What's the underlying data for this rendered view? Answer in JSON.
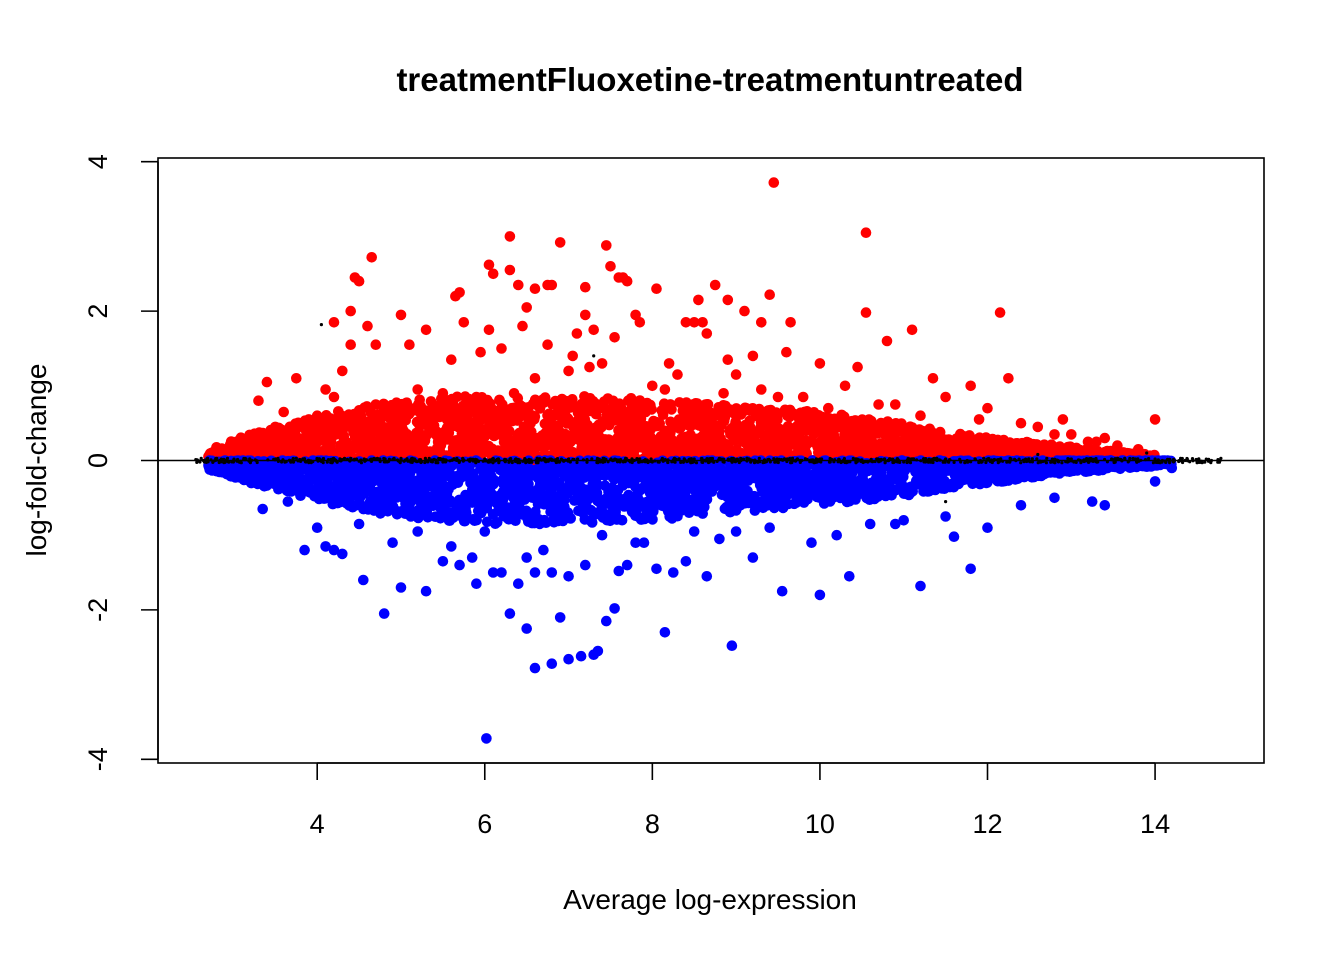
{
  "chart_data": {
    "type": "scatter",
    "title": "treatmentFluoxetine-treatmentuntreated",
    "xlabel": "Average log-expression",
    "ylabel": "log-fold-change",
    "xlim": [
      2.1,
      15.3
    ],
    "ylim": [
      -4.05,
      4.05
    ],
    "x_ticks": [
      4,
      6,
      8,
      10,
      12,
      14
    ],
    "y_ticks": [
      -4,
      -2,
      0,
      2,
      4
    ],
    "hline": 0,
    "grid": false,
    "legend": "none",
    "colors": {
      "up": "#ff0000",
      "down": "#0000ff",
      "ns": "#000000"
    },
    "series": [
      {
        "color": "#ff0000",
        "x": [
          9.45,
          10.55,
          6.3,
          6.9,
          7.45,
          4.65,
          6.05,
          6.3,
          7.5,
          7.6,
          4.45,
          4.5,
          6.1,
          6.4,
          6.6,
          6.75,
          6.8,
          7.2,
          7.7,
          7.65,
          8.05,
          8.75,
          8.55,
          8.9,
          9.1,
          9.4,
          10.55,
          12.15,
          4.4,
          5.0,
          5.65,
          5.7,
          6.5,
          7.8,
          7.2,
          8.6,
          9.3,
          9.65,
          10.8,
          11.1,
          4.2,
          4.4,
          4.6,
          4.7,
          5.1,
          5.3,
          5.75,
          6.05,
          6.45,
          7.1,
          7.3,
          7.55,
          7.85,
          8.4,
          8.5,
          8.65,
          3.4,
          3.75,
          4.1,
          4.3,
          5.6,
          5.95,
          6.2,
          6.75,
          7.05,
          7.25,
          8.2,
          8.9,
          9.0,
          9.2,
          9.6,
          10.0,
          10.45,
          11.35,
          11.8,
          12.25,
          12.9,
          13.2,
          13.55,
          14.0,
          2.8,
          3.0,
          3.2,
          3.3,
          3.6,
          3.9,
          4.2,
          4.7,
          5.2,
          5.5,
          5.9,
          6.6,
          7.0,
          7.4,
          8.0,
          8.3,
          9.3,
          9.8,
          10.3,
          10.9,
          11.5,
          12.0,
          12.6,
          13.0,
          13.4,
          13.8,
          3.5,
          4.0,
          4.9,
          5.4,
          6.35,
          6.95,
          7.6,
          8.15,
          8.85,
          9.5,
          10.1,
          10.7,
          11.2,
          11.9,
          12.4,
          12.8,
          13.3
        ],
        "y": [
          3.72,
          3.05,
          3.0,
          2.92,
          2.88,
          2.72,
          2.62,
          2.55,
          2.6,
          2.45,
          2.45,
          2.4,
          2.5,
          2.35,
          2.3,
          2.35,
          2.35,
          2.32,
          2.4,
          2.45,
          2.3,
          2.35,
          2.15,
          2.15,
          2.0,
          2.22,
          1.98,
          1.98,
          2.0,
          1.95,
          2.2,
          2.25,
          2.05,
          1.95,
          1.95,
          1.85,
          1.85,
          1.85,
          1.6,
          1.75,
          1.85,
          1.55,
          1.8,
          1.55,
          1.55,
          1.75,
          1.85,
          1.75,
          1.8,
          1.7,
          1.75,
          1.65,
          1.85,
          1.85,
          1.85,
          1.7,
          1.05,
          1.1,
          0.95,
          1.2,
          1.35,
          1.45,
          1.5,
          1.55,
          1.4,
          1.25,
          1.3,
          1.35,
          1.15,
          1.4,
          1.45,
          1.3,
          1.25,
          1.1,
          1.0,
          1.1,
          0.55,
          0.25,
          0.2,
          0.55,
          0.12,
          0.2,
          0.25,
          0.8,
          0.65,
          0.55,
          0.85,
          0.75,
          0.95,
          0.9,
          0.85,
          1.1,
          1.2,
          1.3,
          1.0,
          1.15,
          0.95,
          0.85,
          1.0,
          0.75,
          0.85,
          0.7,
          0.45,
          0.35,
          0.3,
          0.15,
          0.45,
          0.6,
          0.7,
          0.65,
          0.9,
          0.8,
          0.75,
          0.95,
          0.9,
          0.85,
          0.7,
          0.75,
          0.6,
          0.55,
          0.5,
          0.35,
          0.25
        ],
        "band": [
          [
            2.7,
            0.15
          ],
          [
            3.2,
            0.35
          ],
          [
            3.7,
            0.5
          ],
          [
            4.2,
            0.65
          ],
          [
            4.7,
            0.75
          ],
          [
            5.2,
            0.82
          ],
          [
            5.7,
            0.86
          ],
          [
            6.2,
            0.86
          ],
          [
            6.7,
            0.86
          ],
          [
            7.2,
            0.86
          ],
          [
            7.7,
            0.84
          ],
          [
            8.2,
            0.8
          ],
          [
            8.7,
            0.75
          ],
          [
            9.2,
            0.72
          ],
          [
            9.7,
            0.68
          ],
          [
            10.2,
            0.62
          ],
          [
            10.7,
            0.55
          ],
          [
            11.2,
            0.45
          ],
          [
            11.7,
            0.35
          ],
          [
            12.2,
            0.28
          ],
          [
            12.7,
            0.22
          ],
          [
            13.2,
            0.16
          ],
          [
            13.7,
            0.1
          ],
          [
            14.0,
            0.08
          ]
        ]
      },
      {
        "color": "#0000ff",
        "x": [
          6.02,
          6.6,
          6.8,
          7.0,
          7.15,
          7.3,
          7.35,
          8.95,
          4.8,
          6.3,
          6.5,
          6.9,
          7.45,
          7.55,
          8.15,
          10.0,
          5.3,
          5.0,
          5.9,
          6.1,
          6.4,
          6.6,
          7.0,
          7.6,
          7.7,
          8.25,
          8.65,
          9.55,
          4.55,
          5.7,
          6.2,
          6.8,
          7.2,
          8.05,
          8.4,
          9.2,
          10.35,
          11.8,
          3.85,
          4.1,
          4.3,
          5.5,
          5.85,
          6.5,
          7.9,
          8.8,
          9.9,
          11.2,
          11.6,
          12.0,
          13.25,
          13.4,
          3.35,
          3.65,
          4.0,
          4.5,
          5.2,
          6.0,
          7.4,
          8.5,
          9.4,
          10.6,
          11.0,
          11.5,
          12.4,
          12.8,
          14.0,
          14.2,
          4.2,
          4.9,
          5.6,
          6.7,
          7.8,
          9.0,
          10.2,
          10.9
        ],
        "y": [
          -3.72,
          -2.78,
          -2.72,
          -2.66,
          -2.62,
          -2.6,
          -2.55,
          -2.48,
          -2.05,
          -2.05,
          -2.25,
          -2.1,
          -2.15,
          -1.98,
          -2.3,
          -1.8,
          -1.75,
          -1.7,
          -1.65,
          -1.5,
          -1.65,
          -1.5,
          -1.55,
          -1.48,
          -1.4,
          -1.5,
          -1.55,
          -1.75,
          -1.6,
          -1.4,
          -1.5,
          -1.5,
          -1.4,
          -1.45,
          -1.35,
          -1.3,
          -1.55,
          -1.45,
          -1.2,
          -1.15,
          -1.25,
          -1.35,
          -1.3,
          -1.3,
          -1.1,
          -1.05,
          -1.1,
          -1.68,
          -1.02,
          -0.9,
          -0.55,
          -0.6,
          -0.65,
          -0.55,
          -0.9,
          -0.85,
          -0.95,
          -0.95,
          -1.0,
          -0.95,
          -0.9,
          -0.85,
          -0.8,
          -0.75,
          -0.6,
          -0.5,
          -0.28,
          -0.1,
          -1.2,
          -1.1,
          -1.15,
          -1.2,
          -1.1,
          -0.95,
          -1.0,
          -0.85
        ],
        "band": [
          [
            2.7,
            -0.12
          ],
          [
            3.2,
            -0.3
          ],
          [
            3.7,
            -0.45
          ],
          [
            4.2,
            -0.6
          ],
          [
            4.7,
            -0.7
          ],
          [
            5.2,
            -0.78
          ],
          [
            5.7,
            -0.82
          ],
          [
            6.2,
            -0.85
          ],
          [
            6.7,
            -0.85
          ],
          [
            7.2,
            -0.85
          ],
          [
            7.7,
            -0.82
          ],
          [
            8.2,
            -0.78
          ],
          [
            8.7,
            -0.72
          ],
          [
            9.2,
            -0.68
          ],
          [
            9.7,
            -0.62
          ],
          [
            10.2,
            -0.58
          ],
          [
            10.7,
            -0.52
          ],
          [
            11.2,
            -0.45
          ],
          [
            11.7,
            -0.35
          ],
          [
            12.2,
            -0.28
          ],
          [
            12.7,
            -0.2
          ],
          [
            13.2,
            -0.15
          ],
          [
            13.7,
            -0.1
          ],
          [
            14.2,
            -0.06
          ]
        ]
      },
      {
        "color": "#000000",
        "x": [
          2.6,
          2.8,
          3.0,
          3.5,
          4.0,
          4.5,
          5.0,
          5.5,
          6.0,
          6.5,
          7.0,
          7.5,
          8.0,
          8.5,
          9.0,
          9.5,
          10.0,
          10.5,
          11.0,
          11.5,
          12.0,
          12.5,
          13.0,
          13.5,
          14.0,
          14.5,
          14.75,
          4.05,
          7.3,
          11.5,
          12.6,
          13.9
        ],
        "y": [
          -0.02,
          0.03,
          -0.02,
          0.01,
          0.02,
          -0.01,
          0.03,
          -0.02,
          0.02,
          -0.01,
          0.02,
          0.01,
          -0.02,
          0.02,
          0.01,
          -0.01,
          0.02,
          0.01,
          -0.02,
          0.02,
          0.01,
          -0.01,
          0.02,
          0.01,
          0.02,
          0.01,
          0.0,
          1.82,
          1.4,
          -0.55,
          0.08,
          0.1
        ]
      }
    ]
  }
}
